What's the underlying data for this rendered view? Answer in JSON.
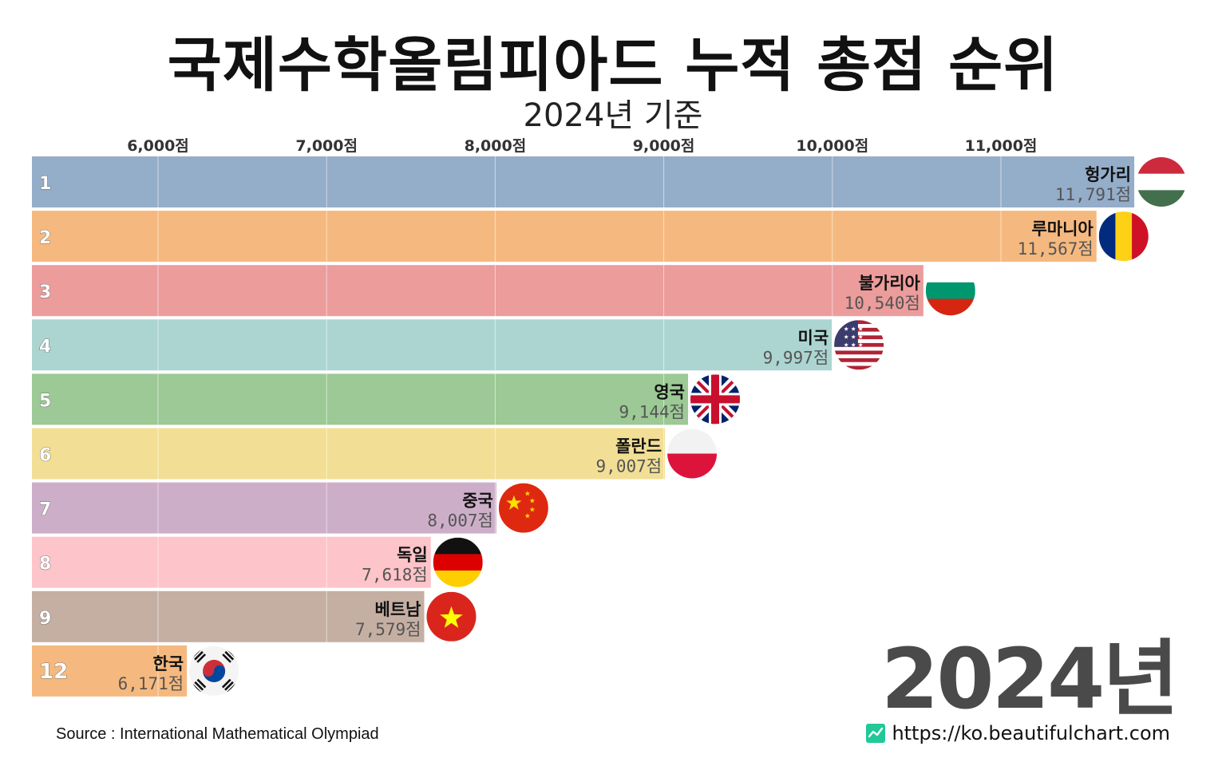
{
  "header": {
    "title": "국제수학올림피아드 누적 총점 순위",
    "subtitle": "2024년 기준"
  },
  "watermark_year": "2024년",
  "footer": {
    "source": "Source : International Mathematical Olympiad",
    "url": "https://ko.beautifulchart.com",
    "brand_icon": "chart-line-icon"
  },
  "chart_data": {
    "type": "bar",
    "orientation": "horizontal",
    "xlim": [
      5250,
      11750
    ],
    "x_ticks": [
      6000,
      7000,
      8000,
      9000,
      10000,
      11000
    ],
    "x_tick_labels": [
      "6,000점",
      "7,000점",
      "8,000점",
      "9,000점",
      "10,000점",
      "11,000점"
    ],
    "grid": true,
    "axis_position": "top",
    "bars": [
      {
        "rank": "1",
        "name": "헝가리",
        "value": 11791,
        "label": "11,791점",
        "color": "#94adc9",
        "flag": "hungary-flag-icon"
      },
      {
        "rank": "2",
        "name": "루마니아",
        "value": 11567,
        "label": "11,567점",
        "color": "#f5b97f",
        "flag": "romania-flag-icon"
      },
      {
        "rank": "3",
        "name": "불가리아",
        "value": 10540,
        "label": "10,540점",
        "color": "#eb9c9b",
        "flag": "bulgaria-flag-icon"
      },
      {
        "rank": "4",
        "name": "미국",
        "value": 9997,
        "label": "9,997점",
        "color": "#acd5d2",
        "flag": "usa-flag-icon"
      },
      {
        "rank": "5",
        "name": "영국",
        "value": 9144,
        "label": "9,144점",
        "color": "#9cc995",
        "flag": "uk-flag-icon"
      },
      {
        "rank": "6",
        "name": "폴란드",
        "value": 9007,
        "label": "9,007점",
        "color": "#f2df95",
        "flag": "poland-flag-icon"
      },
      {
        "rank": "7",
        "name": "중국",
        "value": 8007,
        "label": "8,007점",
        "color": "#cdaec9",
        "flag": "china-flag-icon"
      },
      {
        "rank": "8",
        "name": "독일",
        "value": 7618,
        "label": "7,618점",
        "color": "#fdc4c9",
        "flag": "germany-flag-icon"
      },
      {
        "rank": "9",
        "name": "베트남",
        "value": 7579,
        "label": "7,579점",
        "color": "#c5afa3",
        "flag": "vietnam-flag-icon"
      },
      {
        "rank": "12",
        "name": "한국",
        "value": 6171,
        "label": "6,171점",
        "color": "#f5b97f",
        "flag": "korea-flag-icon"
      }
    ]
  }
}
